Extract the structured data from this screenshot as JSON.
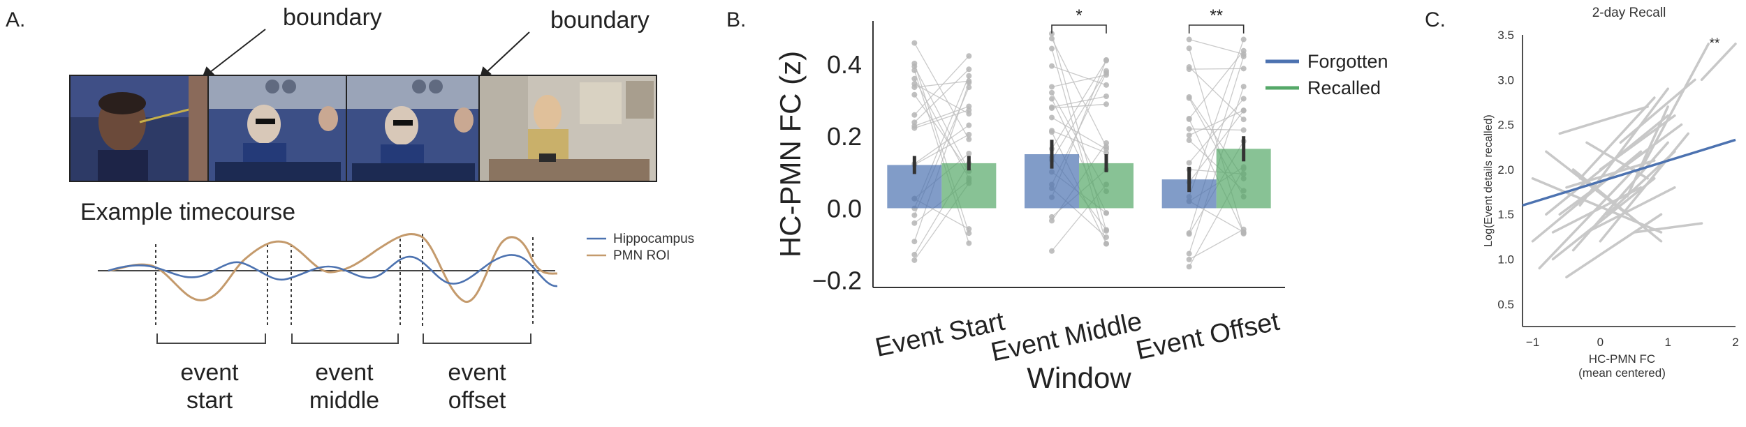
{
  "panel_letters": {
    "a": "A.",
    "b": "B.",
    "c": "C."
  },
  "panel_a": {
    "boundary_labels": [
      "boundary",
      "boundary"
    ],
    "timecourse_title": "Example timecourse",
    "legend": [
      {
        "label": "Hippocampus",
        "color": "#4c72b0"
      },
      {
        "label": "PMN ROI",
        "color": "#c49a6c"
      }
    ],
    "windows": [
      {
        "line1": "event",
        "line2": "start"
      },
      {
        "line1": "event",
        "line2": "middle"
      },
      {
        "line1": "event",
        "line2": "offset"
      }
    ]
  },
  "chart_data": [
    {
      "type": "bar",
      "panel": "B.",
      "title": "",
      "xlabel": "Window",
      "ylabel": "HC-PMN FC (z)",
      "ylim": [
        -0.22,
        0.52
      ],
      "yticks": [
        -0.2,
        0.0,
        0.2,
        0.4
      ],
      "ytick_labels": [
        "−0.2",
        "0.0",
        "0.2",
        "0.4"
      ],
      "categories": [
        "Event Start",
        "Event Middle",
        "Event Offset"
      ],
      "series": [
        {
          "name": "Forgotten",
          "color": "#4c72b0",
          "values": [
            0.12,
            0.15,
            0.08
          ],
          "errors": [
            0.025,
            0.04,
            0.035
          ]
        },
        {
          "name": "Recalled",
          "color": "#55a868",
          "values": [
            0.125,
            0.125,
            0.165
          ],
          "errors": [
            0.02,
            0.025,
            0.035
          ]
        }
      ],
      "significance": [
        {
          "category": "Event Middle",
          "label": "*"
        },
        {
          "category": "Event Offset",
          "label": "**"
        }
      ],
      "legend_position": "upper-right",
      "grid": false
    },
    {
      "type": "line",
      "panel": "C.",
      "title": "2-day Recall",
      "xlabel": "HC-PMN FC",
      "xlabel_line2": "(mean centered)",
      "ylabel": "Log(Event details recalled)",
      "xlim": [
        -1.15,
        2.0
      ],
      "ylim": [
        0.25,
        3.5
      ],
      "xticks": [
        -1,
        0,
        1,
        2
      ],
      "xtick_labels": [
        "−1",
        "0",
        "1",
        "2"
      ],
      "yticks": [
        0.5,
        1.0,
        1.5,
        2.0,
        2.5,
        3.0,
        3.5
      ],
      "ytick_labels": [
        "0.5",
        "1.0",
        "1.5",
        "2.0",
        "2.5",
        "3.0",
        "3.5"
      ],
      "annotation": "**",
      "group_line": {
        "x": [
          -1.15,
          2.0
        ],
        "y": [
          1.6,
          2.33
        ],
        "color": "#4c72b0"
      },
      "subject_lines": [
        {
          "x": [
            -1.0,
            0.6
          ],
          "y": [
            1.2,
            2.2
          ]
        },
        {
          "x": [
            -1.0,
            0.9
          ],
          "y": [
            1.9,
            1.3
          ]
        },
        {
          "x": [
            -0.9,
            0.5
          ],
          "y": [
            0.9,
            2.0
          ]
        },
        {
          "x": [
            -0.8,
            1.0
          ],
          "y": [
            1.5,
            2.6
          ]
        },
        {
          "x": [
            -0.8,
            0.4
          ],
          "y": [
            2.2,
            1.5
          ]
        },
        {
          "x": [
            -0.7,
            0.8
          ],
          "y": [
            1.0,
            1.9
          ]
        },
        {
          "x": [
            -0.7,
            0.6
          ],
          "y": [
            1.3,
            1.8
          ]
        },
        {
          "x": [
            -0.6,
            1.2
          ],
          "y": [
            1.5,
            2.5
          ]
        },
        {
          "x": [
            -0.6,
            0.7
          ],
          "y": [
            2.4,
            2.7
          ]
        },
        {
          "x": [
            -0.5,
            0.9
          ],
          "y": [
            0.8,
            1.5
          ]
        },
        {
          "x": [
            -0.5,
            0.8
          ],
          "y": [
            1.8,
            2.1
          ]
        },
        {
          "x": [
            -0.4,
            1.0
          ],
          "y": [
            1.1,
            2.3
          ]
        },
        {
          "x": [
            -0.4,
            0.9
          ],
          "y": [
            2.0,
            1.2
          ]
        },
        {
          "x": [
            -0.3,
            1.0
          ],
          "y": [
            1.6,
            2.9
          ]
        },
        {
          "x": [
            -0.2,
            1.1
          ],
          "y": [
            1.3,
            1.8
          ]
        },
        {
          "x": [
            -0.2,
            0.7
          ],
          "y": [
            2.3,
            1.9
          ]
        },
        {
          "x": [
            0.0,
            1.3
          ],
          "y": [
            1.2,
            2.4
          ]
        },
        {
          "x": [
            0.0,
            1.1
          ],
          "y": [
            2.0,
            2.6
          ]
        },
        {
          "x": [
            0.1,
            1.1
          ],
          "y": [
            1.5,
            2.2
          ]
        },
        {
          "x": [
            0.3,
            1.4
          ],
          "y": [
            2.3,
            3.0
          ]
        },
        {
          "x": [
            0.4,
            1.0
          ],
          "y": [
            1.7,
            2.7
          ]
        },
        {
          "x": [
            0.5,
            1.5
          ],
          "y": [
            1.3,
            1.4
          ]
        },
        {
          "x": [
            0.6,
            1.6
          ],
          "y": [
            2.0,
            3.4
          ]
        },
        {
          "x": [
            -0.3,
            0.8
          ],
          "y": [
            1.9,
            2.8
          ]
        },
        {
          "x": [
            1.5,
            2.0
          ],
          "y": [
            3.0,
            3.4
          ]
        }
      ],
      "grid": false
    }
  ]
}
